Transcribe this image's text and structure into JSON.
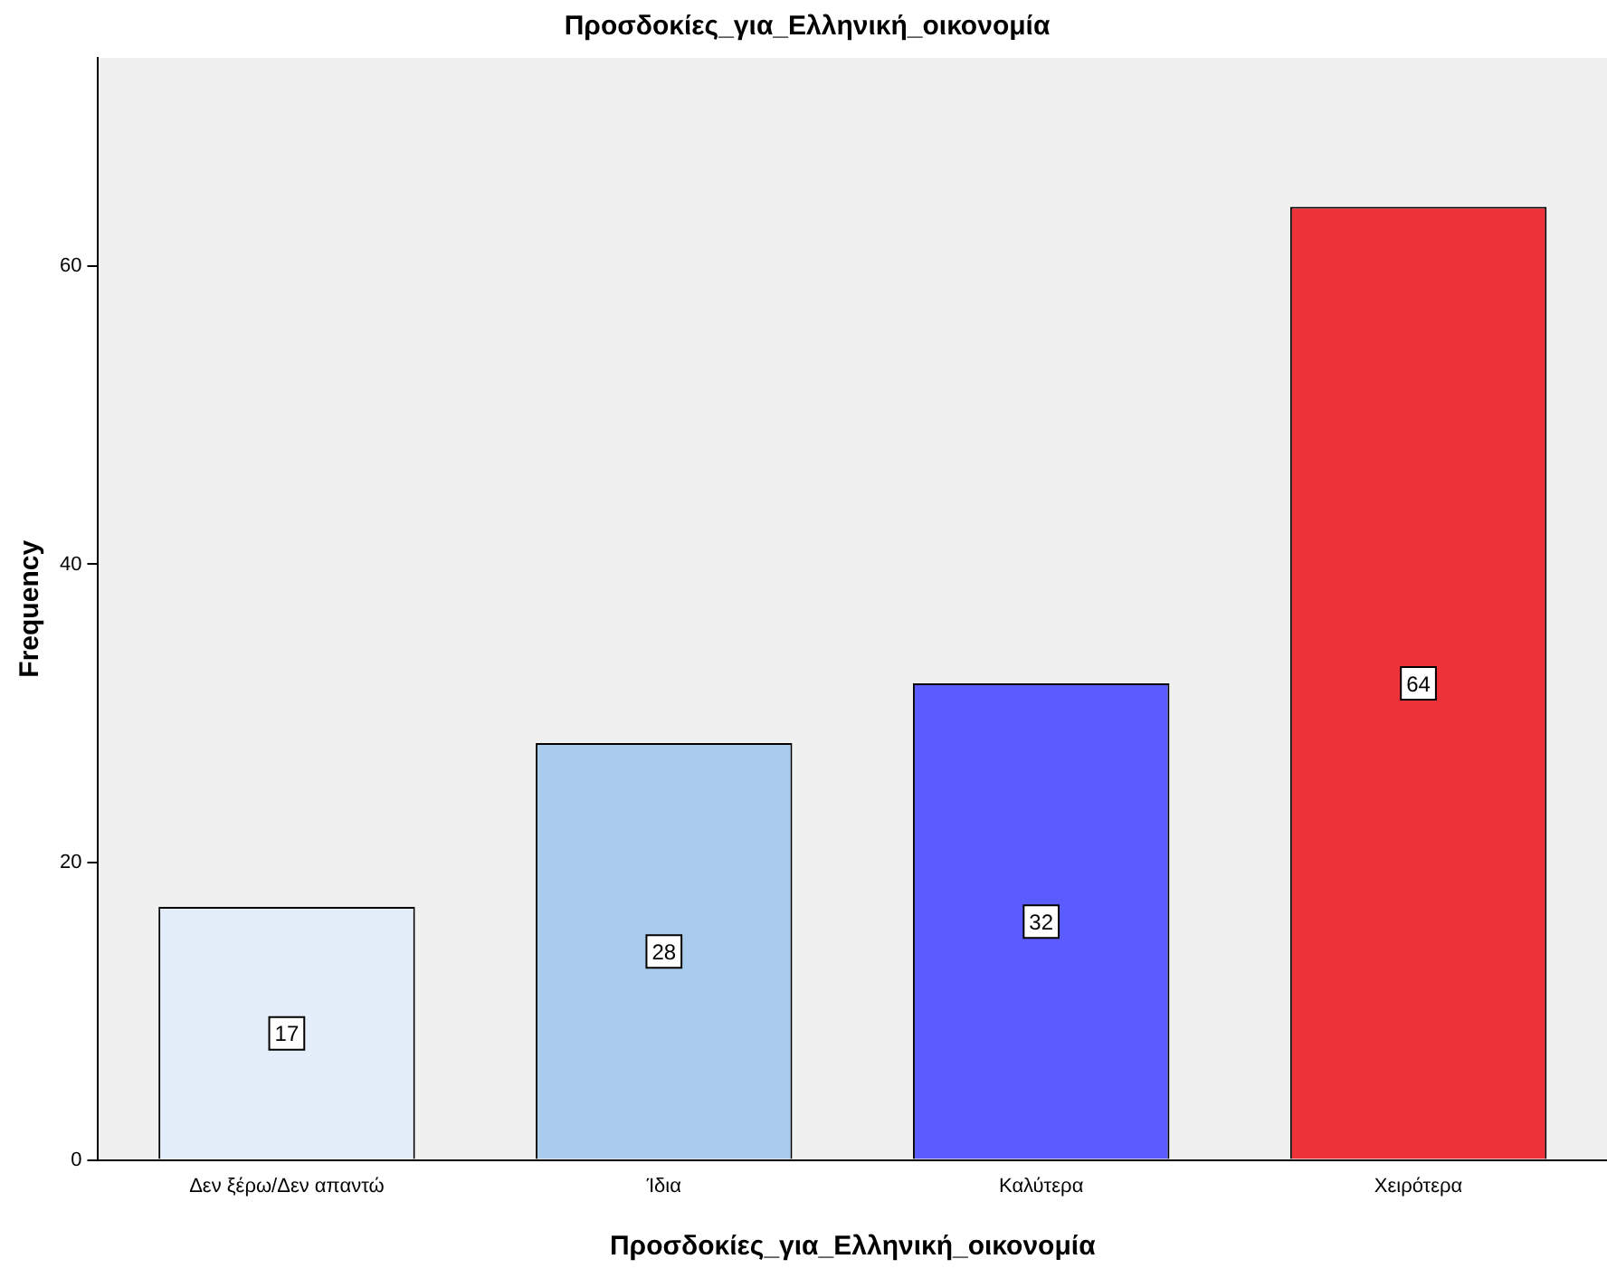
{
  "chart_data": {
    "type": "bar",
    "title": "Προσδοκίες_για_Ελληνική_οικονομία",
    "xlabel": "Προσδοκίες_για_Ελληνική_οικονομία",
    "ylabel": "Frequency",
    "categories": [
      "Δεν ξέρω/Δεν απαντώ",
      "Ίδια",
      "Καλύτερα",
      "Χειρότερα"
    ],
    "values": [
      17,
      28,
      32,
      64
    ],
    "colors": [
      "#e3eefa",
      "#a9cbee",
      "#5b5cff",
      "#ee3239"
    ],
    "ylim": [
      0,
      74
    ],
    "yticks": [
      0,
      20,
      40,
      60
    ],
    "grid": false,
    "legend": false,
    "data_labels": true
  }
}
